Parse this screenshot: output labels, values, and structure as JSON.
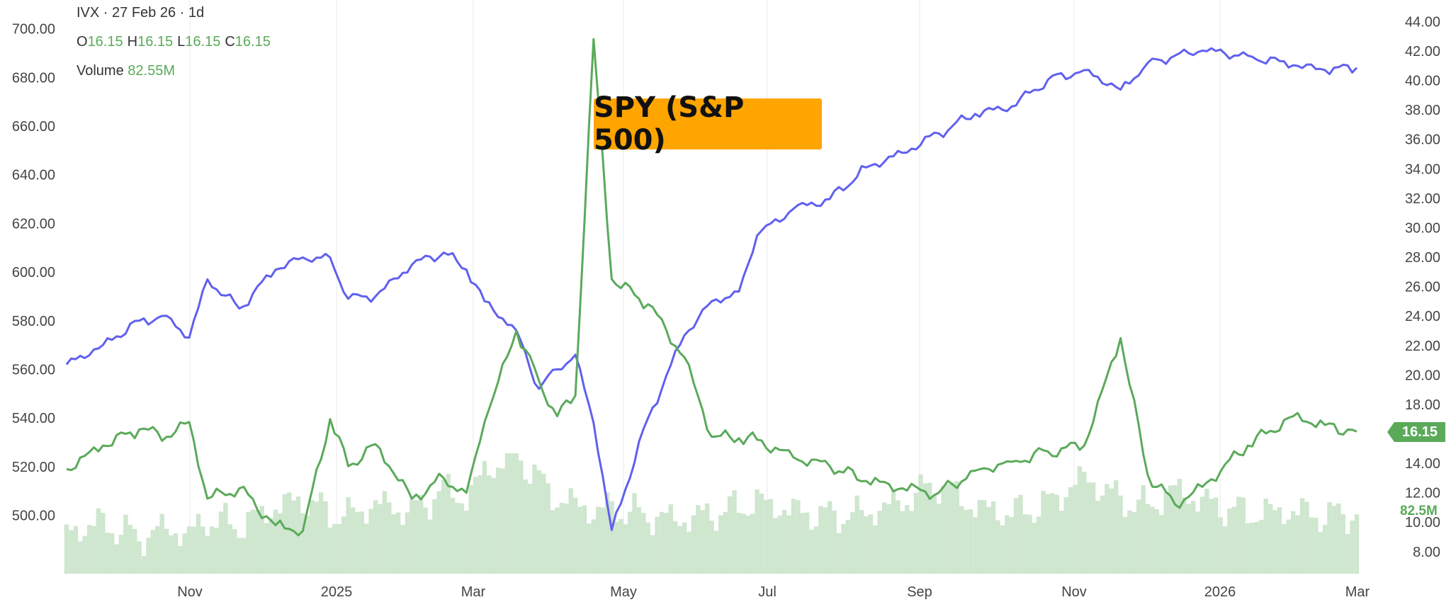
{
  "legend": {
    "header": "IVX · 27 Feb 26 · 1d",
    "ohlc": [
      {
        "key": "O",
        "value": "16.15"
      },
      {
        "key": "H",
        "value": "16.15"
      },
      {
        "key": "L",
        "value": "16.15"
      },
      {
        "key": "C",
        "value": "16.15"
      }
    ],
    "volume_label": "Volume",
    "volume_value": "82.55M"
  },
  "overlay_label": "SPY (S&P 500)",
  "price_tag": "16.15",
  "volume_tag": "82.5M",
  "colors": {
    "spy": "#6060ee",
    "ivx": "#5aaa5a",
    "volume": "#cfe6cf",
    "tag": "#5aaa5a",
    "overlay": "#ffa500",
    "grid": "#e8e8e8"
  },
  "chart_data": {
    "type": "line",
    "x_ticks": [
      "Nov",
      "2025",
      "Mar",
      "May",
      "Jul",
      "Sep",
      "Nov",
      "2026",
      "Mar"
    ],
    "left_axis": {
      "ticks": [
        "700.00",
        "680.00",
        "660.00",
        "640.00",
        "620.00",
        "600.00",
        "580.00",
        "560.00",
        "540.00",
        "520.00",
        "500.00"
      ],
      "range": [
        476,
        706
      ]
    },
    "right_axis": {
      "ticks": [
        "44.00",
        "42.00",
        "40.00",
        "38.00",
        "36.00",
        "34.00",
        "32.00",
        "30.00",
        "28.00",
        "26.00",
        "24.00",
        "22.00",
        "20.00",
        "18.00",
        "16.00",
        "14.00",
        "12.00",
        "10.00",
        "8.00"
      ],
      "range": [
        6.5,
        44.5
      ]
    },
    "x_index": [
      0,
      8,
      16,
      22,
      27,
      31,
      38,
      46,
      52,
      58,
      62,
      68,
      76,
      83,
      88,
      92,
      99,
      104,
      108,
      112,
      116,
      120,
      128,
      136,
      142,
      148,
      152,
      160,
      168,
      176,
      184,
      192,
      200,
      208,
      216,
      224,
      232,
      238,
      244,
      250,
      260,
      270,
      277,
      284
    ],
    "series": [
      {
        "name": "SPY",
        "axis": "left",
        "values": [
          562,
          570,
          580,
          582,
          573,
          597,
          585,
          601,
          606,
          606,
          589,
          590,
          603,
          608,
          601,
          588,
          576,
          552,
          560,
          566,
          538,
          494,
          540,
          574,
          588,
          592,
          615,
          626,
          630,
          643,
          649,
          657,
          665,
          668,
          679,
          683,
          675,
          686,
          689,
          691,
          689,
          685,
          683,
          684
        ]
      },
      {
        "name": "IVX",
        "axis": "right",
        "values": [
          13.6,
          15.2,
          16.3,
          15.8,
          16.8,
          11.6,
          12.3,
          9.8,
          9.4,
          17.0,
          13.8,
          15.3,
          11.6,
          13.0,
          12.0,
          16.8,
          23.0,
          19.6,
          17.2,
          18.6,
          42.8,
          26.5,
          24.8,
          21.2,
          15.8,
          15.7,
          15.6,
          14.4,
          13.8,
          12.8,
          12.3,
          12.0,
          13.5,
          14.1,
          14.8,
          15.2,
          22.5,
          13.2,
          11.2,
          12.4,
          15.2,
          17.2,
          16.6,
          16.15
        ]
      }
    ],
    "volume": {
      "values_relative": [
        0.35,
        0.42,
        0.3,
        0.38,
        0.32,
        0.45,
        0.4,
        0.55,
        0.62,
        0.5,
        0.48,
        0.58,
        0.52,
        0.7,
        0.62,
        0.85,
        1.0,
        0.78,
        0.62,
        0.58,
        0.52,
        0.54,
        0.48,
        0.45,
        0.5,
        0.55,
        0.6,
        0.52,
        0.48,
        0.5,
        0.6,
        0.75,
        0.55,
        0.5,
        0.58,
        0.8,
        0.62,
        0.55,
        0.7,
        0.6,
        0.5,
        0.52,
        0.48,
        0.5
      ]
    }
  }
}
